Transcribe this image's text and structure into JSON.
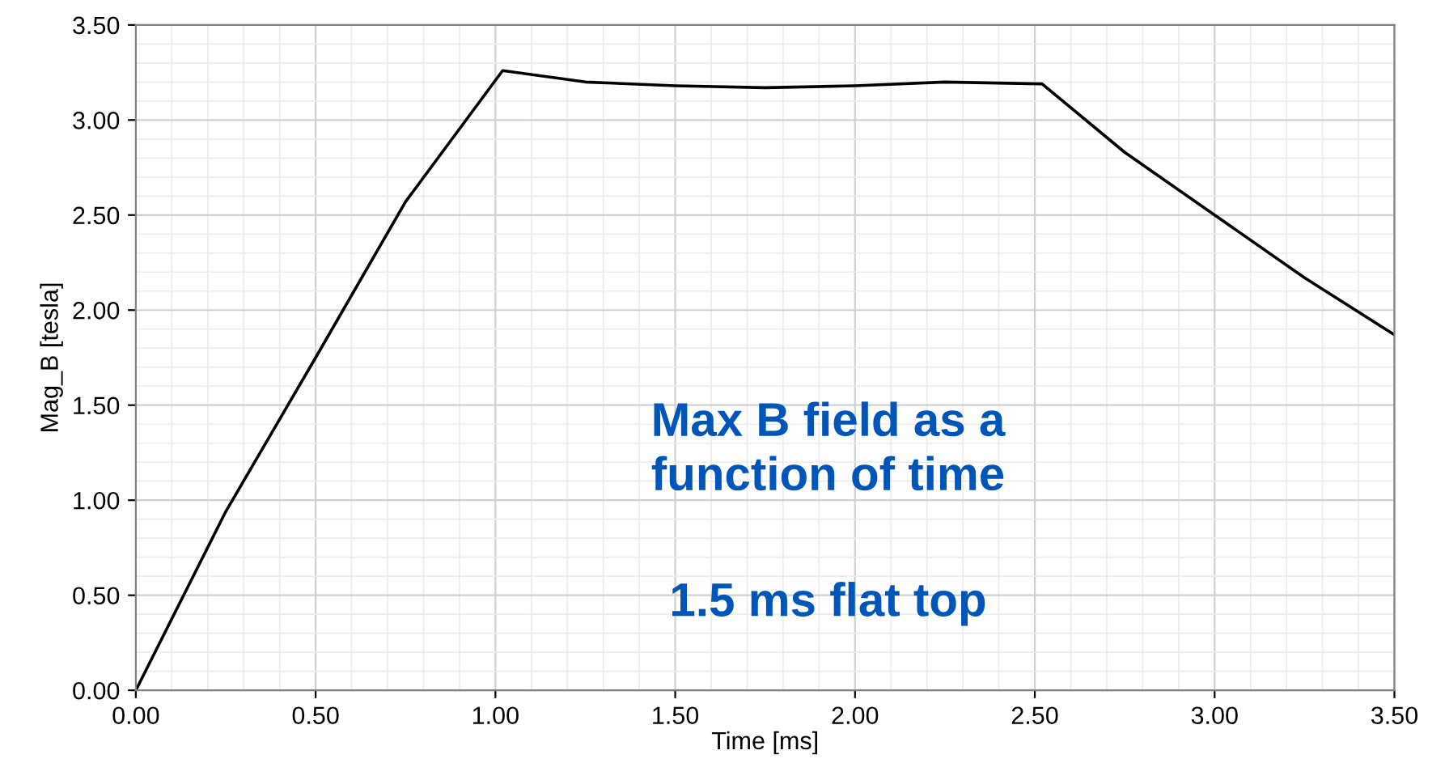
{
  "chart_data": {
    "type": "line",
    "xlabel": "Time [ms]",
    "ylabel": "Mag_B [tesla]",
    "x": [
      0,
      0.25,
      0.5,
      0.75,
      1.02,
      1.25,
      1.5,
      1.75,
      2.0,
      2.25,
      2.52,
      2.75,
      3.0,
      3.25,
      3.5
    ],
    "series": [
      {
        "color": "#000000",
        "values": [
          0,
          0.94,
          1.75,
          2.57,
          3.26,
          3.2,
          3.18,
          3.17,
          3.18,
          3.2,
          3.19,
          2.83,
          2.5,
          2.17,
          1.87
        ]
      }
    ],
    "xlim": [
      0,
      3.5
    ],
    "ylim": [
      0,
      3.5
    ],
    "xticks": [
      {
        "value": 0,
        "label": "0.00"
      },
      {
        "value": 0.5,
        "label": "0.50"
      },
      {
        "value": 1,
        "label": "1.00"
      },
      {
        "value": 1.5,
        "label": "1.50"
      },
      {
        "value": 2,
        "label": "2.00"
      },
      {
        "value": 2.5,
        "label": "2.50"
      },
      {
        "value": 3,
        "label": "3.00"
      },
      {
        "value": 3.5,
        "label": "3.50"
      }
    ],
    "yticks": [
      {
        "value": 0,
        "label": "0.00"
      },
      {
        "value": 0.5,
        "label": "0.50"
      },
      {
        "value": 1,
        "label": "1.00"
      },
      {
        "value": 1.5,
        "label": "1.50"
      },
      {
        "value": 2,
        "label": "2.00"
      },
      {
        "value": 2.5,
        "label": "2.50"
      },
      {
        "value": 3,
        "label": "3.00"
      },
      {
        "value": 3.5,
        "label": "3.50"
      }
    ],
    "grid": true,
    "legend": false,
    "marker": "none",
    "line_style": "solid",
    "annotations": [
      "Max B field as a\nfunction of time",
      "1.5 ms flat top"
    ]
  }
}
